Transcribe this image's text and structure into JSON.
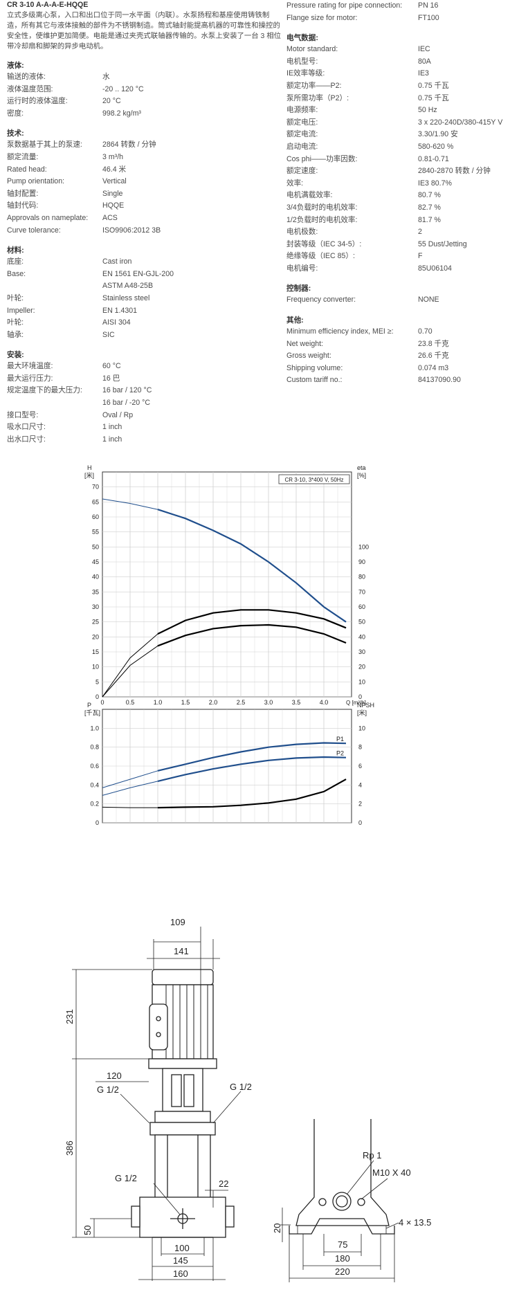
{
  "header": {
    "title": "CR 3-10 A-A-A-E-HQQE",
    "intro": "立式多级离心泵，入口和出口位于同一水平面（内联）。水泵扬程和基座使用铸铁制造，所有其它与液体接触的部件为不锈钢制造。筒式轴封能提高机器的可靠性和操控的安全性，使维护更加简便。电能是通过夹壳式联轴器传输的。水泵上安装了一台 3 相位带冷却扇和脚架的异步电动机。"
  },
  "left": {
    "liquid": {
      "heading": "液体:",
      "rows": [
        {
          "k": "输送的液体:",
          "v": "水"
        },
        {
          "k": "液体温度范围:",
          "v": "-20 .. 120 °C"
        },
        {
          "k": "运行时的液体温度:",
          "v": "20 °C"
        },
        {
          "k": "密度:",
          "v": "998.2 kg/m³"
        }
      ]
    },
    "tech": {
      "heading": "技术:",
      "rows": [
        {
          "k": "泵数据基于其上的泵速:",
          "v": "2864 转数 / 分钟"
        },
        {
          "k": "额定流量:",
          "v": "3 m³/h"
        },
        {
          "k": "Rated head:",
          "v": "46.4 米"
        },
        {
          "k": "Pump orientation:",
          "v": "Vertical"
        },
        {
          "k": "轴封配置:",
          "v": "Single"
        },
        {
          "k": "轴封代码:",
          "v": "HQQE"
        },
        {
          "k": "Approvals on nameplate:",
          "v": "ACS"
        },
        {
          "k": "Curve tolerance:",
          "v": "ISO9906:2012 3B"
        }
      ]
    },
    "material": {
      "heading": "材料:",
      "rows": [
        {
          "k": "底座:",
          "v": "Cast iron"
        },
        {
          "k": "Base:",
          "v": "EN 1561 EN-GJL-200"
        },
        {
          "k": "",
          "v": "ASTM A48-25B"
        },
        {
          "k": "叶轮:",
          "v": "Stainless steel"
        },
        {
          "k": "Impeller:",
          "v": "EN 1.4301"
        },
        {
          "k": "叶轮:",
          "v": "AISI 304"
        },
        {
          "k": "轴承:",
          "v": "SIC"
        }
      ]
    },
    "install": {
      "heading": "安装:",
      "rows": [
        {
          "k": "最大环境温度:",
          "v": "60 °C"
        },
        {
          "k": "最大运行压力:",
          "v": "16 巴"
        },
        {
          "k": "规定温度下的最大压力:",
          "v": "16 bar / 120 °C"
        },
        {
          "k": "",
          "v": "16 bar / -20 °C"
        },
        {
          "k": "接口型号:",
          "v": "Oval / Rp"
        },
        {
          "k": "吸水口尺寸:",
          "v": "1 inch"
        },
        {
          "k": "出水口尺寸:",
          "v": "1 inch"
        }
      ]
    }
  },
  "right": {
    "top": {
      "rows": [
        {
          "k": "Pressure rating for pipe connection:",
          "v": "PN 16"
        },
        {
          "k": "Flange size for motor:",
          "v": "FT100"
        }
      ]
    },
    "electric": {
      "heading": "电气数据:",
      "rows": [
        {
          "k": "Motor standard:",
          "v": "IEC"
        },
        {
          "k": "电机型号:",
          "v": "80A"
        },
        {
          "k": "IE效率等级:",
          "v": "IE3"
        },
        {
          "k": "额定功率——P2:",
          "v": "0.75 千瓦"
        },
        {
          "k": "泵所需功率（P2）:",
          "v": "0.75 千瓦"
        },
        {
          "k": "电源频率:",
          "v": "50 Hz"
        },
        {
          "k": "额定电压:",
          "v": "3 x 220-240D/380-415Y V"
        },
        {
          "k": "额定电流:",
          "v": "3.30/1.90 安"
        },
        {
          "k": "启动电流:",
          "v": "580-620 %"
        },
        {
          "k": "Cos phi——功率因数:",
          "v": "0.81-0.71"
        },
        {
          "k": "额定速度:",
          "v": "2840-2870 转数 / 分钟"
        },
        {
          "k": "效率:",
          "v": "IE3 80.7%"
        },
        {
          "k": "电机满载效率:",
          "v": "80.7 %"
        },
        {
          "k": "3/4负载时的电机效率:",
          "v": "82.7 %"
        },
        {
          "k": "1/2负载时的电机效率:",
          "v": "81.7 %"
        },
        {
          "k": "电机极数:",
          "v": "2"
        },
        {
          "k": "封装等级（IEC 34-5）:",
          "v": "55 Dust/Jetting"
        },
        {
          "k": "绝缘等级（IEC 85）:",
          "v": "F"
        },
        {
          "k": "电机编号:",
          "v": "85U06104"
        }
      ]
    },
    "control": {
      "heading": "控制器:",
      "rows": [
        {
          "k": "Frequency converter:",
          "v": "NONE"
        }
      ]
    },
    "other": {
      "heading": "其他:",
      "rows": [
        {
          "k": "Minimum efficiency index, MEI ≥:",
          "v": "0.70"
        },
        {
          "k": "Net weight:",
          "v": "23.8 千克"
        },
        {
          "k": "Gross weight:",
          "v": "26.6 千克"
        },
        {
          "k": "Shipping volume:",
          "v": "0.074 m3"
        },
        {
          "k": "Custom tariff no.:",
          "v": "84137090.90"
        }
      ]
    }
  },
  "chart_data": [
    {
      "type": "line",
      "legend_box": "CR 3-10, 3*400 V, 50Hz",
      "ylabel_left": [
        "H",
        "[米]"
      ],
      "ylabel_right": [
        "eta",
        "[%]"
      ],
      "xlabel": "Q [m³/h]",
      "xlim": [
        0,
        4.5
      ],
      "ylim_left": [
        0,
        75
      ],
      "ylim_right": [
        0,
        150
      ],
      "x_ticks": [
        "0",
        "0.5",
        "1.0",
        "1.5",
        "2.0",
        "2.5",
        "3.0",
        "3.5",
        "4.0"
      ],
      "y_ticks_left": [
        "0",
        "5",
        "10",
        "15",
        "20",
        "25",
        "30",
        "35",
        "40",
        "45",
        "50",
        "55",
        "60",
        "65",
        "70"
      ],
      "y_ticks_right": [
        "0",
        "10",
        "20",
        "30",
        "40",
        "50",
        "60",
        "70",
        "80",
        "90",
        "100"
      ],
      "grid": true,
      "series": [
        {
          "axis": "left",
          "color": "#1f4e8c",
          "x": [
            0,
            0.5,
            1.0,
            1.5,
            2.0,
            2.5,
            3.0,
            3.5,
            4.0,
            4.4
          ],
          "y": [
            66,
            64.5,
            62.5,
            59.5,
            55.5,
            51,
            45,
            38,
            30,
            25
          ]
        },
        {
          "axis": "right",
          "color": "#000000",
          "x": [
            0,
            0.5,
            1.0,
            1.5,
            2.0,
            2.5,
            3.0,
            3.5,
            4.0,
            4.4
          ],
          "y": [
            0,
            26,
            42,
            51,
            56,
            58,
            58,
            56,
            52,
            46
          ]
        },
        {
          "axis": "right",
          "color": "#000000",
          "x": [
            0,
            0.5,
            1.0,
            1.5,
            2.0,
            2.5,
            3.0,
            3.5,
            4.0,
            4.4
          ],
          "y": [
            0,
            21,
            34,
            41,
            45.5,
            47.5,
            48,
            46.5,
            42,
            36
          ]
        }
      ]
    },
    {
      "type": "line",
      "ylabel_left": [
        "P",
        "[千瓦]"
      ],
      "ylabel_right": [
        "NPSH",
        "[米]"
      ],
      "xlim": [
        0,
        4.5
      ],
      "ylim_left": [
        0,
        1.2
      ],
      "ylim_right": [
        0,
        12
      ],
      "y_ticks_left": [
        "0",
        "0.2",
        "0.4",
        "0.6",
        "0.8",
        "1.0"
      ],
      "y_ticks_right": [
        "0",
        "2",
        "4",
        "6",
        "8",
        "10"
      ],
      "grid": true,
      "series": [
        {
          "name": "P1",
          "axis": "left",
          "color": "#1f4e8c",
          "x": [
            0,
            0.5,
            1.0,
            1.5,
            2.0,
            2.5,
            3.0,
            3.5,
            4.0,
            4.4
          ],
          "y": [
            0.37,
            0.46,
            0.55,
            0.62,
            0.69,
            0.75,
            0.8,
            0.83,
            0.845,
            0.84
          ]
        },
        {
          "name": "P2",
          "axis": "left",
          "color": "#1f4e8c",
          "x": [
            0,
            0.5,
            1.0,
            1.5,
            2.0,
            2.5,
            3.0,
            3.5,
            4.0,
            4.4
          ],
          "y": [
            0.29,
            0.37,
            0.44,
            0.51,
            0.57,
            0.62,
            0.66,
            0.685,
            0.695,
            0.69
          ]
        },
        {
          "axis": "right",
          "color": "#000000",
          "x": [
            0,
            0.5,
            1.0,
            1.5,
            2.0,
            2.5,
            3.0,
            3.5,
            4.0,
            4.4
          ],
          "y": [
            1.65,
            1.6,
            1.6,
            1.65,
            1.7,
            1.85,
            2.1,
            2.5,
            3.3,
            4.6
          ]
        }
      ]
    }
  ],
  "drawing": {
    "dims": {
      "d109": "109",
      "d141": "141",
      "d231": "231",
      "d120": "120",
      "d386": "386",
      "d50": "50",
      "d22": "22",
      "d100": "100",
      "d145": "145",
      "d160": "160",
      "d20": "20",
      "d75": "75",
      "d180": "180",
      "d220": "220"
    },
    "labels": {
      "g12_left": "G 1/2",
      "g12_right": "G 1/2",
      "g12_low": "G 1/2",
      "rp1": "Rp 1",
      "m10": "M10 X 40",
      "holes": "4 × 13.5"
    }
  }
}
